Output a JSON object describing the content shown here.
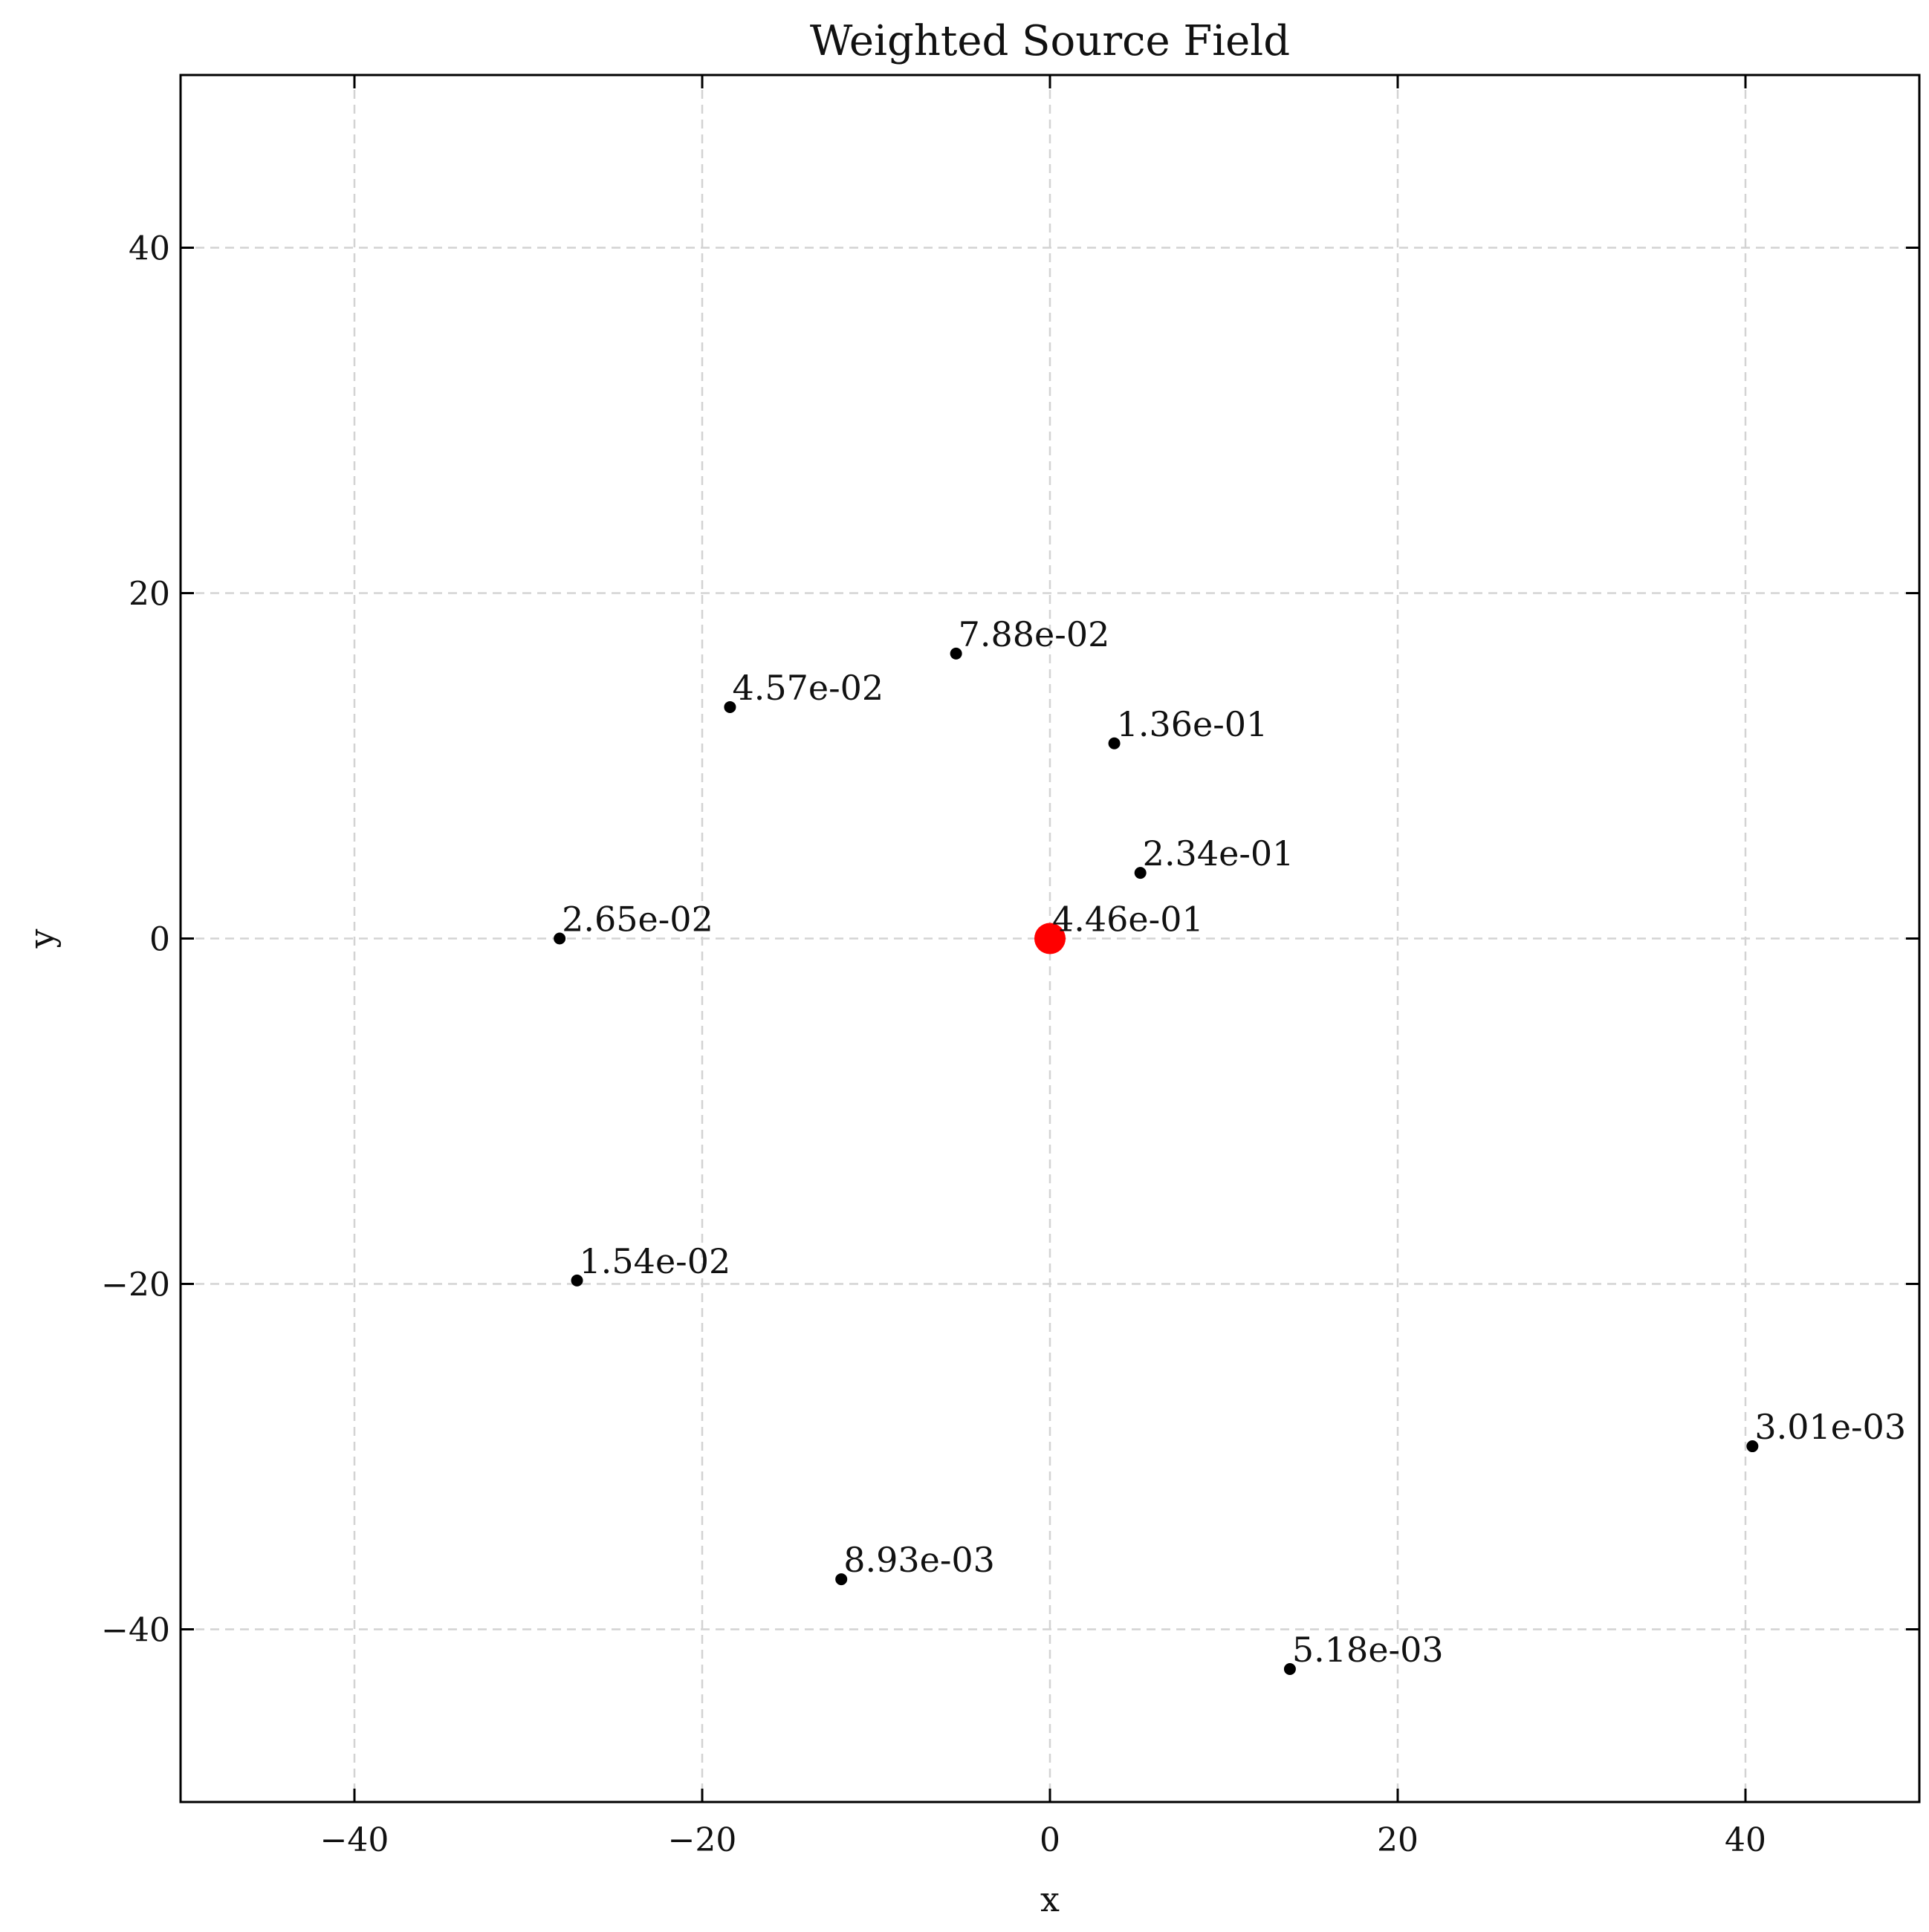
{
  "chart_data": {
    "type": "scatter",
    "title": "Weighted Source Field",
    "xlabel": "x",
    "ylabel": "y",
    "xlim": [
      -50,
      50
    ],
    "ylim": [
      -50,
      50
    ],
    "xticks": [
      -40,
      -20,
      0,
      20,
      40
    ],
    "yticks": [
      -40,
      -20,
      0,
      20,
      40
    ],
    "xtick_labels": [
      "−40",
      "−20",
      "0",
      "20",
      "40"
    ],
    "ytick_labels": [
      "−40",
      "−20",
      "0",
      "20",
      "40"
    ],
    "grid": true,
    "points": [
      {
        "x": 0.0,
        "y": 0.0,
        "label": "4.46e-01",
        "color": "#ff0000",
        "highlight": true
      },
      {
        "x": 5.2,
        "y": 3.8,
        "label": "2.34e-01",
        "color": "#000000"
      },
      {
        "x": 3.7,
        "y": 11.3,
        "label": "1.36e-01",
        "color": "#000000"
      },
      {
        "x": -5.4,
        "y": 16.5,
        "label": "7.88e-02",
        "color": "#000000"
      },
      {
        "x": -18.4,
        "y": 13.4,
        "label": "4.57e-02",
        "color": "#000000"
      },
      {
        "x": -28.2,
        "y": 0.0,
        "label": "2.65e-02",
        "color": "#000000"
      },
      {
        "x": -27.2,
        "y": -19.8,
        "label": "1.54e-02",
        "color": "#000000"
      },
      {
        "x": -12.0,
        "y": -37.1,
        "label": "8.93e-03",
        "color": "#000000"
      },
      {
        "x": 13.8,
        "y": -42.3,
        "label": "5.18e-03",
        "color": "#000000"
      },
      {
        "x": 40.4,
        "y": -29.4,
        "label": "3.01e-03",
        "color": "#000000"
      }
    ]
  }
}
